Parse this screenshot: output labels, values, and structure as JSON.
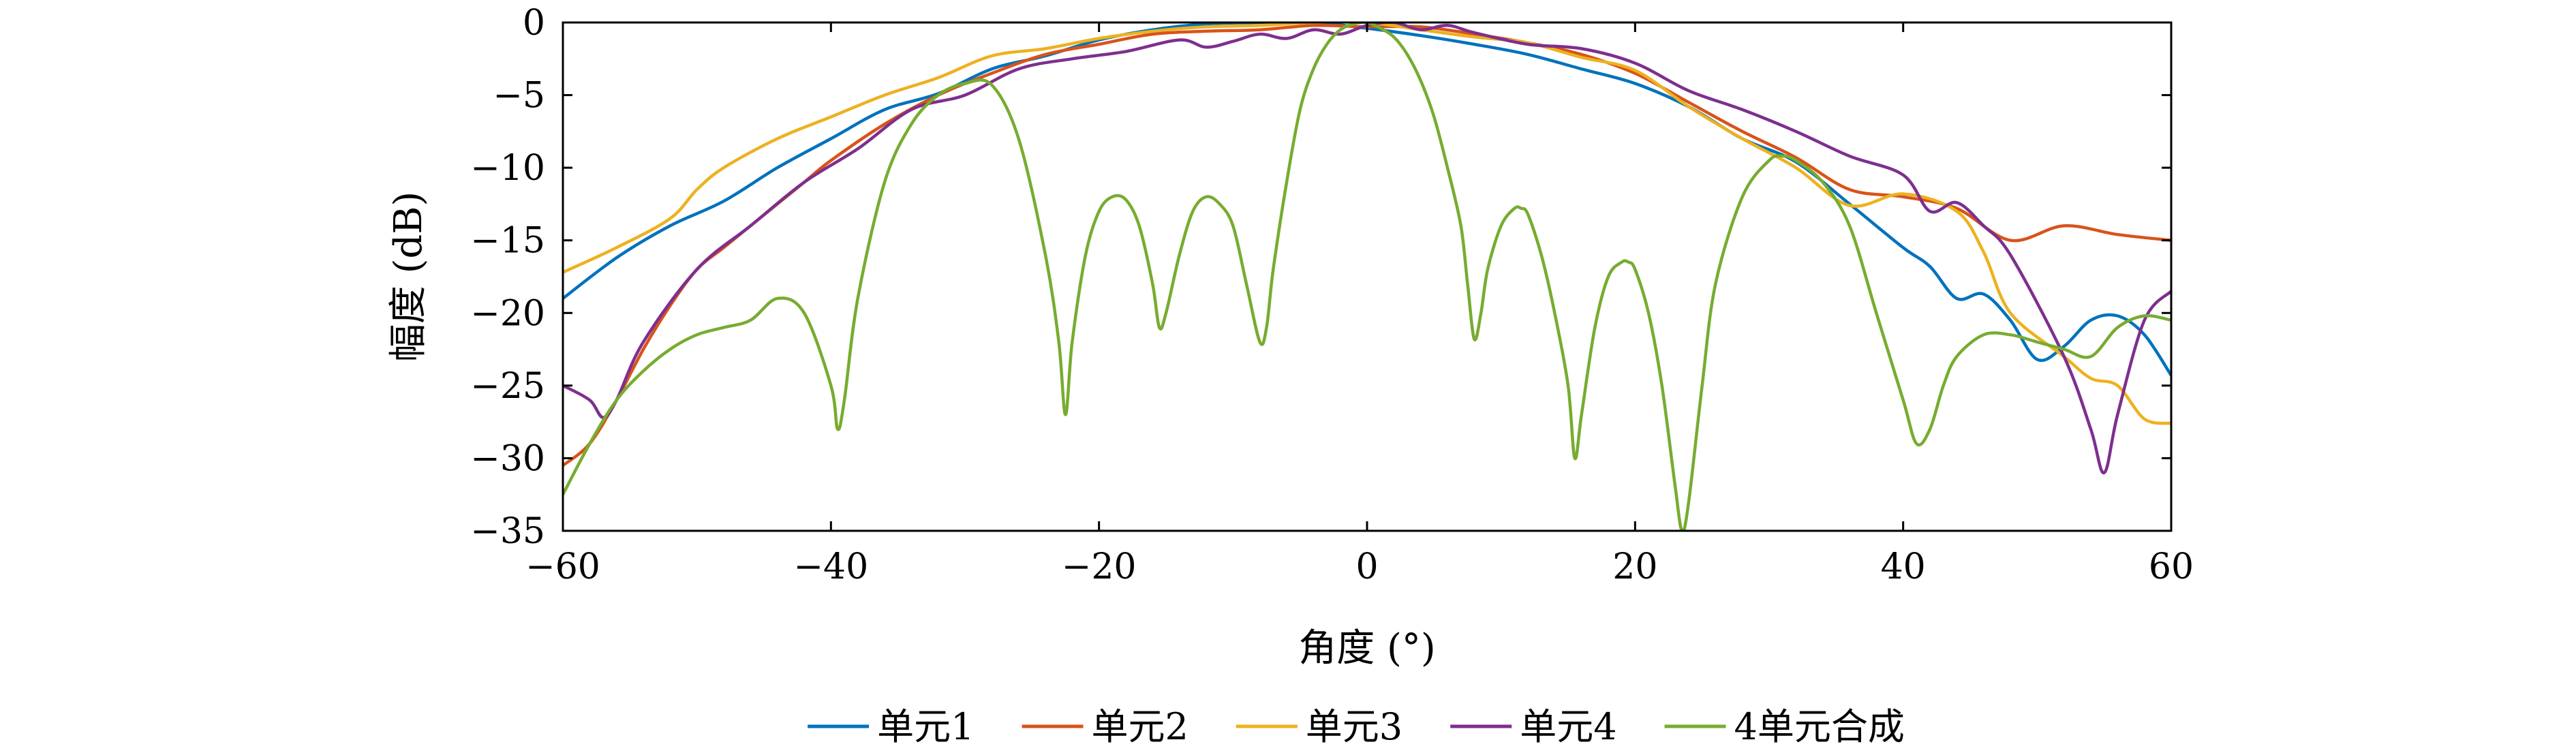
{
  "chart_data": {
    "type": "line",
    "title": "",
    "xlabel": "角度 (°)",
    "ylabel": "幅度 (dB)",
    "xlim": [
      -60,
      60
    ],
    "ylim": [
      -35,
      0
    ],
    "xticks": [
      -60,
      -40,
      -20,
      0,
      20,
      40,
      60
    ],
    "yticks": [
      0,
      -5,
      -10,
      -15,
      -20,
      -25,
      -30,
      -35
    ],
    "xtick_labels": [
      "−60",
      "−40",
      "−20",
      "0",
      "20",
      "40",
      "60"
    ],
    "ytick_labels": [
      "0",
      "−5",
      "−10",
      "−15",
      "−20",
      "−25",
      "−30",
      "−35"
    ],
    "grid": false,
    "legend_position": "bottom",
    "series": [
      {
        "name": "单元1",
        "color": "#0072BD",
        "x": [
          -60,
          -56,
          -52,
          -48,
          -44,
          -40,
          -36,
          -32,
          -28,
          -24,
          -20,
          -16,
          -12,
          -8,
          -4,
          0,
          4,
          8,
          12,
          16,
          20,
          24,
          28,
          32,
          36,
          40,
          42,
          44,
          46,
          48,
          50,
          52,
          54,
          56,
          58,
          60
        ],
        "y": [
          -19,
          -16.2,
          -14,
          -12.3,
          -10,
          -8,
          -6,
          -4.9,
          -3.2,
          -2.3,
          -1.2,
          -0.5,
          -0.1,
          0,
          0,
          -0.4,
          -0.9,
          -1.5,
          -2.2,
          -3.2,
          -4.2,
          -5.8,
          -8,
          -9.6,
          -12.5,
          -15.5,
          -16.8,
          -19,
          -18.7,
          -20.5,
          -23.2,
          -22.3,
          -20.5,
          -20.2,
          -21.5,
          -24.3
        ]
      },
      {
        "name": "单元2",
        "color": "#D95319",
        "x": [
          -60,
          -58,
          -56,
          -54,
          -52,
          -50,
          -48,
          -46,
          -44,
          -42,
          -40,
          -36,
          -32,
          -28,
          -24,
          -20,
          -16,
          -12,
          -8,
          -4,
          0,
          4,
          8,
          12,
          16,
          20,
          24,
          28,
          32,
          36,
          40,
          44,
          48,
          52,
          56,
          60
        ],
        "y": [
          -30.5,
          -29,
          -26,
          -22.5,
          -19.5,
          -17,
          -15.5,
          -14,
          -12.5,
          -11,
          -9.5,
          -7,
          -5,
          -3.5,
          -2.2,
          -1.5,
          -0.8,
          -0.6,
          -0.5,
          -0.2,
          -0.3,
          -0.3,
          -0.8,
          -1.4,
          -2.2,
          -3.5,
          -5.5,
          -7.5,
          -9.3,
          -11.5,
          -12,
          -12.8,
          -15,
          -14,
          -14.6,
          -15
        ]
      },
      {
        "name": "单元3",
        "color": "#EDB120",
        "x": [
          -60,
          -56,
          -52,
          -50,
          -48,
          -44,
          -40,
          -36,
          -32,
          -28,
          -24,
          -20,
          -16,
          -12,
          -8,
          -4,
          0,
          4,
          8,
          12,
          16,
          20,
          24,
          28,
          32,
          36,
          40,
          44,
          46,
          48,
          52,
          54,
          56,
          58,
          60
        ],
        "y": [
          -17.2,
          -15.5,
          -13.5,
          -11.5,
          -10,
          -8,
          -6.5,
          -5,
          -3.8,
          -2.3,
          -1.8,
          -1.1,
          -0.6,
          -0.3,
          -0.2,
          0,
          0,
          -0.5,
          -1,
          -1.4,
          -2.4,
          -3.3,
          -5.8,
          -8,
          -10,
          -12.6,
          -11.8,
          -13,
          -15.8,
          -20,
          -23,
          -24.5,
          -25,
          -27.3,
          -27.6
        ]
      },
      {
        "name": "单元4",
        "color": "#7E2F8E",
        "x": [
          -60,
          -58,
          -57,
          -56,
          -54,
          -50,
          -46,
          -42,
          -38,
          -34,
          -30,
          -26,
          -22,
          -18,
          -14,
          -12,
          -10,
          -8,
          -6,
          -4,
          -2,
          0,
          2,
          4,
          6,
          8,
          12,
          16,
          20,
          24,
          28,
          32,
          36,
          40,
          42,
          44,
          46,
          48,
          52,
          54,
          55,
          56,
          58,
          60
        ],
        "y": [
          -25,
          -26,
          -27.2,
          -26,
          -22,
          -17,
          -14,
          -11,
          -8.7,
          -6,
          -5,
          -3.2,
          -2.5,
          -2,
          -1.2,
          -1.7,
          -1.3,
          -0.8,
          -1.1,
          -0.5,
          -0.8,
          -0.2,
          0,
          -0.5,
          -0.2,
          -0.7,
          -1.5,
          -1.8,
          -2.8,
          -4.7,
          -6,
          -7.5,
          -9.2,
          -10.5,
          -13,
          -12.4,
          -14,
          -16,
          -23,
          -28,
          -31,
          -27,
          -20.5,
          -18.5
        ]
      },
      {
        "name": "4单元合成",
        "color": "#77AC30",
        "x": [
          -60,
          -58,
          -56,
          -54,
          -52,
          -50,
          -48,
          -46,
          -44,
          -42,
          -40,
          -39.5,
          -39,
          -38,
          -36,
          -34,
          -32,
          -30,
          -28,
          -26,
          -24,
          -23,
          -22.5,
          -22,
          -21,
          -20,
          -19,
          -18,
          -17,
          -16,
          -15.5,
          -15,
          -14,
          -13,
          -12,
          -11,
          -10,
          -9,
          -8,
          -7.5,
          -7,
          -6,
          -5,
          -4,
          -3,
          -2,
          -1,
          0,
          1,
          2,
          3,
          4,
          5,
          6,
          7,
          7.5,
          8,
          8.5,
          9,
          10,
          11,
          11.5,
          12,
          13,
          14,
          15,
          15.5,
          16,
          17,
          18,
          19,
          19.5,
          20,
          21,
          22,
          23,
          23.5,
          24,
          25,
          26,
          28,
          30,
          31,
          32,
          34,
          36,
          38,
          40,
          41,
          42,
          43,
          44,
          46,
          48,
          50,
          52,
          54,
          56,
          58,
          60
        ],
        "y": [
          -32.5,
          -29,
          -26,
          -24,
          -22.5,
          -21.5,
          -21,
          -20.5,
          -19,
          -20,
          -25,
          -28,
          -26,
          -19,
          -11,
          -7,
          -5,
          -4.2,
          -4.3,
          -8,
          -16,
          -22,
          -27,
          -22,
          -16,
          -13,
          -12,
          -12.2,
          -14,
          -18,
          -21,
          -20,
          -16,
          -13,
          -12,
          -12.5,
          -14,
          -18,
          -22,
          -21,
          -17,
          -11,
          -6,
          -3.2,
          -1.5,
          -0.5,
          -0.1,
          0,
          -0.4,
          -1,
          -2.2,
          -4,
          -6.5,
          -10,
          -14,
          -18,
          -21.8,
          -20,
          -17,
          -14,
          -12.8,
          -12.8,
          -13.2,
          -16,
          -20,
          -25,
          -30,
          -27,
          -21,
          -17.5,
          -16.5,
          -16.5,
          -17,
          -20,
          -25,
          -32,
          -35,
          -33,
          -25,
          -18,
          -12,
          -9.5,
          -9.2,
          -9.5,
          -11,
          -14,
          -20,
          -26,
          -29,
          -28,
          -25,
          -23,
          -21.5,
          -21.5,
          -22,
          -22.5,
          -23,
          -21,
          -20.2,
          -20.5
        ]
      }
    ]
  }
}
